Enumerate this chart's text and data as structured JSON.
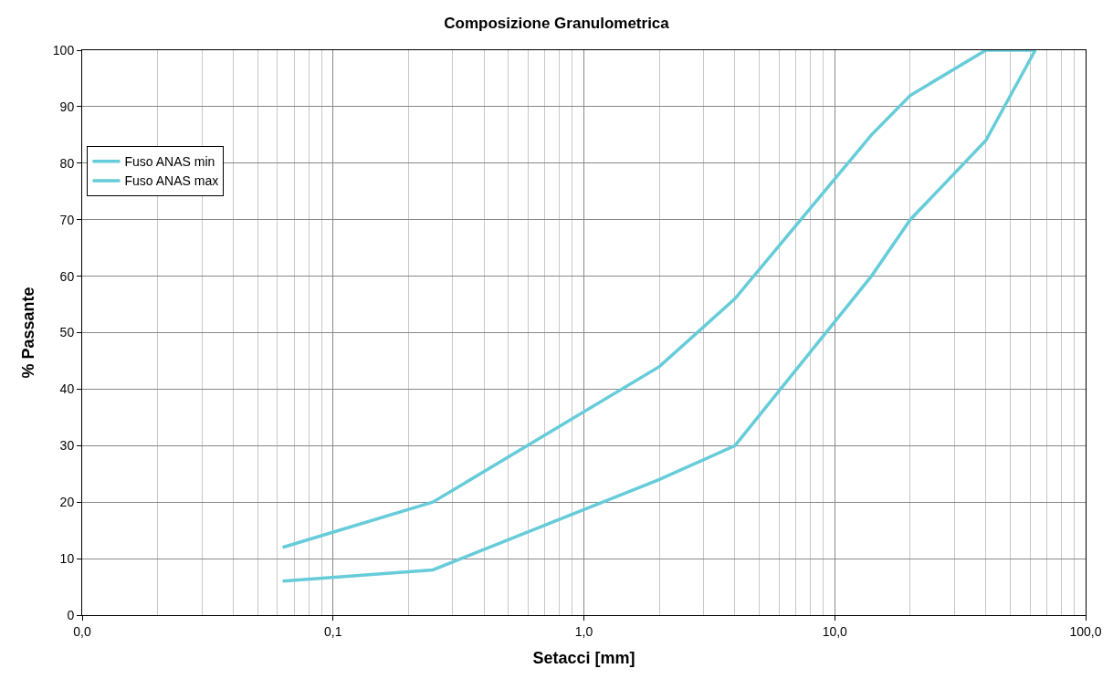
{
  "chart_data": {
    "type": "line",
    "title": "Composizione Granulometrica",
    "xlabel": "Setacci [mm]",
    "ylabel": "% Passante",
    "log": "x",
    "grid": true,
    "legend": "top left",
    "marker": "none",
    "line_style": "solid",
    "xlim": [
      0.01,
      100
    ],
    "xticks": [
      {
        "value": 0.01,
        "label": "0,0"
      },
      {
        "value": 0.1,
        "label": "0,1"
      },
      {
        "value": 1,
        "label": "1,0"
      },
      {
        "value": 10,
        "label": "10,0"
      },
      {
        "value": 100,
        "label": "100,0"
      }
    ],
    "ylim": [
      0,
      100
    ],
    "yticks": [
      0,
      10,
      20,
      30,
      40,
      50,
      60,
      70,
      80,
      90,
      100
    ],
    "x": [
      0.063,
      0.25,
      2,
      4,
      14,
      20,
      40,
      63
    ],
    "series": [
      {
        "name": "Fuso ANAS min",
        "color": "#66ccd9",
        "values": [
          6,
          8,
          24,
          30,
          60,
          70,
          84,
          100
        ]
      },
      {
        "name": "Fuso ANAS max",
        "color": "#66ccd9",
        "values": [
          12,
          20,
          44,
          56,
          85,
          92,
          100,
          100
        ]
      }
    ]
  }
}
